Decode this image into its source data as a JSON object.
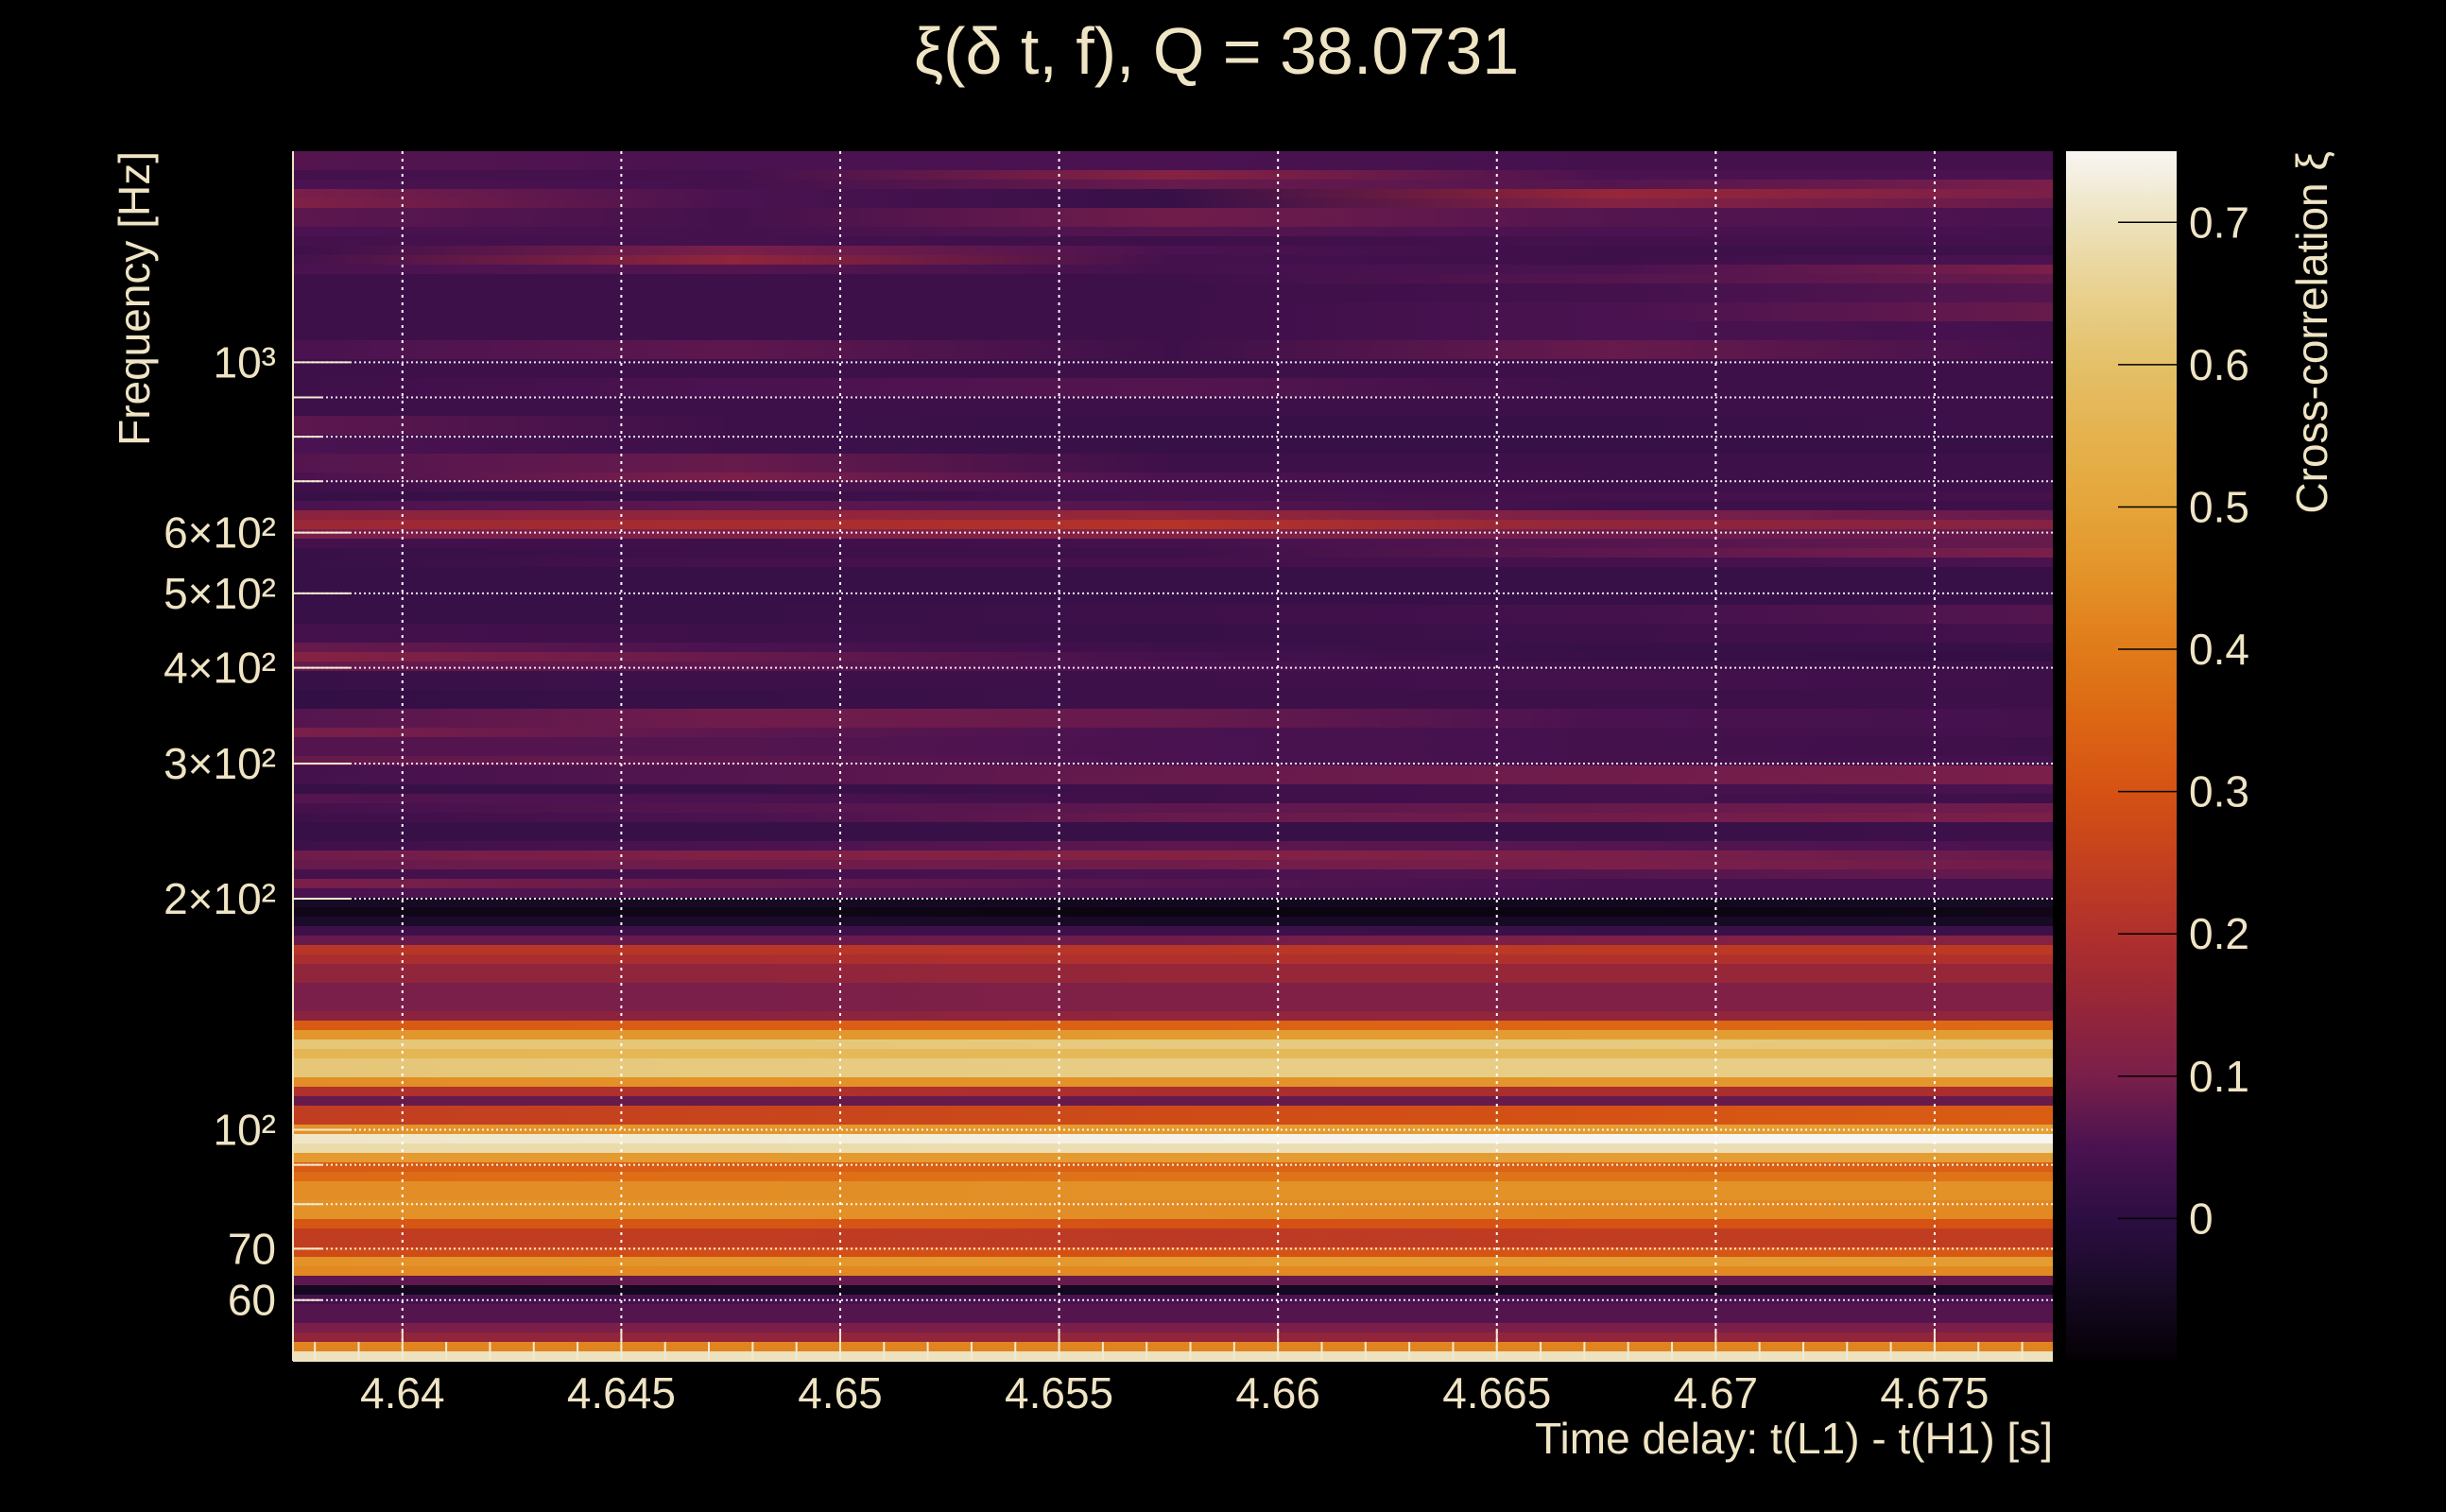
{
  "chart_data": {
    "type": "heatmap",
    "title": "ξ(δ t, f), Q = 38.0731",
    "xlabel": "Time delay: t(L1) - t(H1) [s]",
    "ylabel": "Frequency [Hz]",
    "colorbar_label": "Cross-correlation ξ",
    "xlim": [
      4.6375,
      4.6777
    ],
    "ylim": [
      50,
      1884
    ],
    "yscale": "log",
    "clim": [
      -0.1,
      0.75
    ],
    "colormap": "inferno",
    "grid": true,
    "x_ticks": [
      {
        "value": 4.64,
        "label": "4.64"
      },
      {
        "value": 4.645,
        "label": "4.645"
      },
      {
        "value": 4.65,
        "label": "4.65"
      },
      {
        "value": 4.655,
        "label": "4.655"
      },
      {
        "value": 4.66,
        "label": "4.66"
      },
      {
        "value": 4.665,
        "label": "4.665"
      },
      {
        "value": 4.67,
        "label": "4.67"
      },
      {
        "value": 4.675,
        "label": "4.675"
      }
    ],
    "x_minor_step": 0.001,
    "y_ticks": [
      {
        "value": 1000,
        "label": "10³"
      },
      {
        "value": 600,
        "label": "6×10²"
      },
      {
        "value": 500,
        "label": "5×10²"
      },
      {
        "value": 400,
        "label": "4×10²"
      },
      {
        "value": 300,
        "label": "3×10²"
      },
      {
        "value": 200,
        "label": "2×10²"
      },
      {
        "value": 100,
        "label": "10²"
      },
      {
        "value": 70,
        "label": "70"
      },
      {
        "value": 60,
        "label": "60"
      }
    ],
    "y_minor_grid": [
      900,
      800,
      700,
      90,
      80
    ],
    "colorbar_ticks": [
      {
        "value": 0.7,
        "label": "0.7"
      },
      {
        "value": 0.6,
        "label": "0.6"
      },
      {
        "value": 0.5,
        "label": "0.5"
      },
      {
        "value": 0.4,
        "label": "0.4"
      },
      {
        "value": 0.3,
        "label": "0.3"
      },
      {
        "value": 0.2,
        "label": "0.2"
      },
      {
        "value": 0.1,
        "label": "0.1"
      },
      {
        "value": 0,
        "label": "0"
      }
    ],
    "colormap_stops": [
      [
        -0.1,
        "#050005"
      ],
      [
        -0.05,
        "#170a25"
      ],
      [
        0,
        "#2c0e42"
      ],
      [
        0.05,
        "#4a1250"
      ],
      [
        0.1,
        "#7a1f4a"
      ],
      [
        0.15,
        "#962638"
      ],
      [
        0.2,
        "#b0302c"
      ],
      [
        0.25,
        "#c4401f"
      ],
      [
        0.3,
        "#d55214"
      ],
      [
        0.35,
        "#dc6614"
      ],
      [
        0.4,
        "#e07b1a"
      ],
      [
        0.45,
        "#e39228"
      ],
      [
        0.5,
        "#e5a53a"
      ],
      [
        0.55,
        "#e5b24e"
      ],
      [
        0.6,
        "#e4c068"
      ],
      [
        0.65,
        "#e8d08e"
      ],
      [
        0.7,
        "#ede2bd"
      ],
      [
        0.75,
        "#f7f5f2"
      ]
    ],
    "n_freq_bins": 128,
    "rows_note": "runs top(high f) to bottom(low f): [bin_count, xi at 0%, 25%, 50%, 75%, 100% of time range]",
    "rows": [
      [
        2,
        0.06,
        0.05,
        0.05,
        0.04,
        0.04
      ],
      [
        1,
        0.04,
        0.04,
        0.12,
        0.05,
        0.05
      ],
      [
        1,
        0.05,
        0.04,
        0.08,
        0.06,
        0.1
      ],
      [
        1,
        0.1,
        0.05,
        0.02,
        0.15,
        0.1
      ],
      [
        1,
        0.11,
        0.05,
        0.02,
        0.12,
        0.08
      ],
      [
        2,
        0.07,
        0.04,
        0.09,
        0.06,
        0.05
      ],
      [
        1,
        0.05,
        0.04,
        0.06,
        0.05,
        0.04
      ],
      [
        1,
        0.04,
        0.04,
        0.03,
        0.04,
        0.04
      ],
      [
        1,
        0.03,
        0.1,
        0.05,
        0.03,
        0.03
      ],
      [
        1,
        0.04,
        0.14,
        0.04,
        0.03,
        0.05
      ],
      [
        1,
        0.05,
        0.06,
        0.04,
        0.05,
        0.1
      ],
      [
        1,
        0.03,
        0.03,
        0.03,
        0.06,
        0.08
      ],
      [
        2,
        0.03,
        0.03,
        0.03,
        0.04,
        0.06
      ],
      [
        2,
        0.03,
        0.03,
        0.03,
        0.05,
        0.08
      ],
      [
        2,
        0.03,
        0.03,
        0.03,
        0.05,
        0.04
      ],
      [
        2,
        0.05,
        0.07,
        0.03,
        0.08,
        0.04
      ],
      [
        2,
        0.03,
        0.03,
        0.03,
        0.03,
        0.03
      ],
      [
        2,
        0.03,
        0.05,
        0.06,
        0.03,
        0.03
      ],
      [
        2,
        0.03,
        0.03,
        0.03,
        0.03,
        0.03
      ],
      [
        2,
        0.07,
        0.03,
        0.02,
        0.02,
        0.03
      ],
      [
        2,
        0.05,
        0.03,
        0.02,
        0.02,
        0.02
      ],
      [
        2,
        0.06,
        0.08,
        0.03,
        0.03,
        0.03
      ],
      [
        1,
        0.05,
        0.1,
        0.05,
        0.03,
        0.03
      ],
      [
        1,
        0.03,
        0.05,
        0.04,
        0.03,
        0.03
      ],
      [
        1,
        0.02,
        0.02,
        0.04,
        0.04,
        0.04
      ],
      [
        1,
        0.05,
        0.07,
        0.06,
        0.03,
        0.03
      ],
      [
        1,
        0.13,
        0.14,
        0.15,
        0.1,
        0.08
      ],
      [
        1,
        0.16,
        0.18,
        0.21,
        0.14,
        0.12
      ],
      [
        1,
        0.1,
        0.11,
        0.12,
        0.09,
        0.08
      ],
      [
        1,
        0.04,
        0.03,
        0.04,
        0.06,
        0.08
      ],
      [
        1,
        0.02,
        0.03,
        0.03,
        0.07,
        0.1
      ],
      [
        1,
        0.02,
        0.04,
        0.04,
        0.04,
        0.05
      ],
      [
        2,
        0.02,
        0.02,
        0.02,
        0.02,
        0.02
      ],
      [
        2,
        0.02,
        0.02,
        0.02,
        0.02,
        0.02
      ],
      [
        2,
        0.02,
        0.02,
        0.03,
        0.04,
        0.06
      ],
      [
        2,
        0.04,
        0.03,
        0.02,
        0.03,
        0.04
      ],
      [
        1,
        0.08,
        0.05,
        0.03,
        0.02,
        0.02
      ],
      [
        1,
        0.12,
        0.08,
        0.04,
        0.02,
        0.01
      ],
      [
        1,
        0.08,
        0.07,
        0.05,
        0.03,
        0.03
      ],
      [
        2,
        0.02,
        0.03,
        0.03,
        0.04,
        0.03
      ],
      [
        2,
        0.01,
        0.02,
        0.03,
        0.03,
        0.03
      ],
      [
        2,
        0.06,
        0.09,
        0.08,
        0.05,
        0.04
      ],
      [
        1,
        0.1,
        0.07,
        0.05,
        0.04,
        0.04
      ],
      [
        2,
        0.06,
        0.06,
        0.05,
        0.04,
        0.03
      ],
      [
        1,
        0.08,
        0.07,
        0.05,
        0.04,
        0.04
      ],
      [
        2,
        0.04,
        0.06,
        0.08,
        0.09,
        0.1
      ],
      [
        1,
        0.02,
        0.02,
        0.03,
        0.04,
        0.05
      ],
      [
        1,
        0.06,
        0.05,
        0.03,
        0.04,
        0.03
      ],
      [
        1,
        0.04,
        0.06,
        0.07,
        0.08,
        0.09
      ],
      [
        1,
        0.03,
        0.05,
        0.08,
        0.09,
        0.1
      ],
      [
        2,
        0.02,
        0.02,
        0.02,
        0.02,
        0.03
      ],
      [
        1,
        0.03,
        0.05,
        0.07,
        0.06,
        0.05
      ],
      [
        1,
        0.09,
        0.11,
        0.12,
        0.1,
        0.08
      ],
      [
        1,
        0.08,
        0.09,
        0.09,
        0.1,
        0.09
      ],
      [
        1,
        0.04,
        0.04,
        0.05,
        0.06,
        0.08
      ],
      [
        1,
        0.1,
        0.08,
        0.06,
        0.04,
        0.04
      ],
      [
        1,
        0.05,
        0.06,
        0.05,
        0.04,
        0.04
      ],
      [
        1,
        -0.05,
        -0.05,
        -0.06,
        -0.06,
        -0.05
      ],
      [
        1,
        -0.07,
        -0.07,
        -0.08,
        -0.08,
        -0.07
      ],
      [
        1,
        -0.04,
        -0.04,
        -0.05,
        -0.05,
        -0.05
      ],
      [
        1,
        0.03,
        0.03,
        0.03,
        0.02,
        0.03
      ],
      [
        1,
        0.08,
        0.08,
        0.09,
        0.11,
        0.12
      ],
      [
        1,
        0.22,
        0.22,
        0.22,
        0.23,
        0.23
      ],
      [
        1,
        0.19,
        0.19,
        0.2,
        0.2,
        0.2
      ],
      [
        2,
        0.14,
        0.14,
        0.15,
        0.15,
        0.15
      ],
      [
        3,
        0.1,
        0.1,
        0.11,
        0.11,
        0.11
      ],
      [
        1,
        0.13,
        0.13,
        0.14,
        0.14,
        0.14
      ],
      [
        1,
        0.32,
        0.33,
        0.34,
        0.35,
        0.36
      ],
      [
        1,
        0.46,
        0.46,
        0.47,
        0.48,
        0.48
      ],
      [
        1,
        0.62,
        0.62,
        0.63,
        0.63,
        0.62
      ],
      [
        1,
        0.56,
        0.57,
        0.57,
        0.57,
        0.57
      ],
      [
        2,
        0.62,
        0.63,
        0.64,
        0.64,
        0.64
      ],
      [
        1,
        0.44,
        0.45,
        0.45,
        0.46,
        0.46
      ],
      [
        1,
        0.2,
        0.2,
        0.19,
        0.19,
        0.19
      ],
      [
        1,
        0.08,
        0.08,
        0.08,
        0.08,
        0.08
      ],
      [
        2,
        0.24,
        0.26,
        0.28,
        0.3,
        0.33
      ],
      [
        1,
        0.45,
        0.46,
        0.47,
        0.48,
        0.49
      ],
      [
        1,
        0.71,
        0.72,
        0.74,
        0.75,
        0.76
      ],
      [
        1,
        0.68,
        0.68,
        0.69,
        0.69,
        0.69
      ],
      [
        1,
        0.47,
        0.47,
        0.47,
        0.48,
        0.48
      ],
      [
        1,
        0.32,
        0.33,
        0.34,
        0.34,
        0.33
      ],
      [
        1,
        0.36,
        0.37,
        0.38,
        0.38,
        0.38
      ],
      [
        2,
        0.44,
        0.44,
        0.45,
        0.45,
        0.45
      ],
      [
        2,
        0.45,
        0.45,
        0.44,
        0.43,
        0.43
      ],
      [
        1,
        0.31,
        0.31,
        0.3,
        0.3,
        0.3
      ],
      [
        2,
        0.24,
        0.24,
        0.23,
        0.24,
        0.24
      ],
      [
        1,
        0.28,
        0.29,
        0.3,
        0.31,
        0.32
      ],
      [
        1,
        0.45,
        0.46,
        0.47,
        0.48,
        0.48
      ],
      [
        1,
        0.43,
        0.43,
        0.43,
        0.43,
        0.43
      ],
      [
        1,
        0.07,
        0.08,
        0.08,
        0.08,
        0.08
      ],
      [
        1,
        -0.06,
        -0.06,
        -0.06,
        -0.06,
        -0.06
      ],
      [
        1,
        0.04,
        0.04,
        0.05,
        0.05,
        0.05
      ],
      [
        2,
        0.06,
        0.06,
        0.06,
        0.06,
        0.06
      ],
      [
        1,
        0.1,
        0.1,
        0.1,
        0.1,
        0.1
      ],
      [
        1,
        0.14,
        0.14,
        0.14,
        0.14,
        0.14
      ],
      [
        1,
        0.42,
        0.42,
        0.42,
        0.42,
        0.42
      ],
      [
        1,
        0.7,
        0.7,
        0.7,
        0.7,
        0.7
      ]
    ]
  }
}
